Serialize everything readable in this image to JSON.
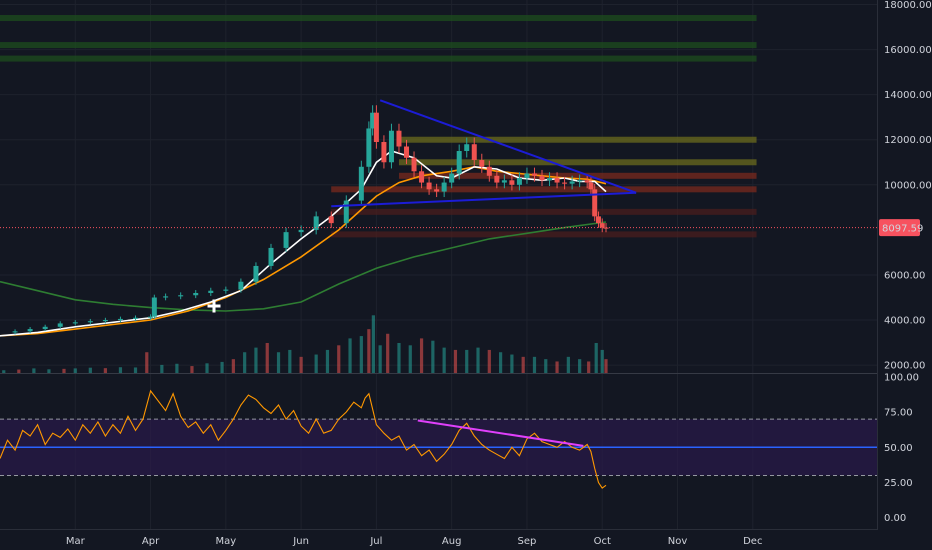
{
  "chart_data": [
    {
      "type": "candlestick",
      "price_axis": {
        "ticks": [
          "18000.00",
          "16000.00",
          "14000.00",
          "12000.00",
          "10000.00",
          "8097.59",
          "6000.00",
          "4000.00",
          "2000.00"
        ],
        "tick_values": [
          18000,
          16000,
          14000,
          12000,
          10000,
          6000,
          4000,
          2000
        ],
        "ylim": [
          1650,
          18200
        ]
      },
      "time_axis": {
        "labels": [
          "Mar",
          "Apr",
          "May",
          "Jun",
          "Jul",
          "Aug",
          "Sep",
          "Oct",
          "Nov",
          "Dec"
        ],
        "month_index": [
          1,
          2,
          3,
          4,
          5,
          6,
          7,
          8,
          9,
          10
        ],
        "xlim": [
          0.0,
          11.65
        ]
      },
      "last_price": {
        "label": "8097.59",
        "value": 8097.59,
        "color": "#f7525f"
      },
      "colors": {
        "up": "#26a69a",
        "down": "#ef5350",
        "ma_fast": "#ffffff",
        "ma_mid": "#ff9800",
        "ma_slow": "#2e7d32",
        "trendline": "#1c1cd6"
      },
      "close_series": [
        [
          0.0,
          3450
        ],
        [
          0.2,
          3500
        ],
        [
          0.4,
          3600
        ],
        [
          0.6,
          3700
        ],
        [
          0.8,
          3850
        ],
        [
          1.0,
          3900
        ],
        [
          1.2,
          3950
        ],
        [
          1.4,
          4000
        ],
        [
          1.6,
          4050
        ],
        [
          1.8,
          4100
        ],
        [
          2.0,
          4150
        ],
        [
          2.05,
          5000
        ],
        [
          2.2,
          5050
        ],
        [
          2.4,
          5100
        ],
        [
          2.6,
          5200
        ],
        [
          2.8,
          5300
        ],
        [
          3.0,
          5350
        ],
        [
          3.2,
          5700
        ],
        [
          3.4,
          6400
        ],
        [
          3.6,
          7200
        ],
        [
          3.8,
          7900
        ],
        [
          4.0,
          8000
        ],
        [
          4.2,
          8600
        ],
        [
          4.4,
          8300
        ],
        [
          4.6,
          9300
        ],
        [
          4.8,
          10800
        ],
        [
          4.9,
          12500
        ],
        [
          4.95,
          13200
        ],
        [
          5.0,
          11900
        ],
        [
          5.1,
          11000
        ],
        [
          5.2,
          12400
        ],
        [
          5.3,
          11700
        ],
        [
          5.4,
          11200
        ],
        [
          5.5,
          10600
        ],
        [
          5.6,
          10100
        ],
        [
          5.7,
          9800
        ],
        [
          5.8,
          9700
        ],
        [
          5.9,
          10100
        ],
        [
          6.0,
          10500
        ],
        [
          6.1,
          11500
        ],
        [
          6.2,
          11800
        ],
        [
          6.3,
          11100
        ],
        [
          6.4,
          10800
        ],
        [
          6.5,
          10400
        ],
        [
          6.6,
          10100
        ],
        [
          6.7,
          10200
        ],
        [
          6.8,
          10000
        ],
        [
          6.9,
          10300
        ],
        [
          7.0,
          10500
        ],
        [
          7.1,
          10400
        ],
        [
          7.2,
          10200
        ],
        [
          7.3,
          10300
        ],
        [
          7.4,
          10100
        ],
        [
          7.5,
          10050
        ],
        [
          7.6,
          10150
        ],
        [
          7.7,
          10200
        ],
        [
          7.8,
          10100
        ],
        [
          7.85,
          9800
        ],
        [
          7.9,
          8600
        ],
        [
          7.95,
          8300
        ],
        [
          8.0,
          8100
        ],
        [
          8.05,
          8097.59
        ]
      ],
      "volume_bars": [
        [
          0.05,
          120
        ],
        [
          0.25,
          150
        ],
        [
          0.45,
          200
        ],
        [
          0.65,
          160
        ],
        [
          0.85,
          180
        ],
        [
          1.0,
          200
        ],
        [
          1.2,
          230
        ],
        [
          1.4,
          210
        ],
        [
          1.6,
          250
        ],
        [
          1.8,
          240
        ],
        [
          1.95,
          900
        ],
        [
          2.15,
          350
        ],
        [
          2.35,
          400
        ],
        [
          2.55,
          300
        ],
        [
          2.75,
          420
        ],
        [
          2.95,
          480
        ],
        [
          3.1,
          600
        ],
        [
          3.25,
          900
        ],
        [
          3.4,
          1100
        ],
        [
          3.55,
          1300
        ],
        [
          3.7,
          900
        ],
        [
          3.85,
          1000
        ],
        [
          4.0,
          700
        ],
        [
          4.2,
          800
        ],
        [
          4.35,
          1000
        ],
        [
          4.5,
          1200
        ],
        [
          4.65,
          1500
        ],
        [
          4.8,
          1600
        ],
        [
          4.9,
          1900
        ],
        [
          4.96,
          2500
        ],
        [
          5.05,
          1200
        ],
        [
          5.15,
          1700
        ],
        [
          5.3,
          1300
        ],
        [
          5.45,
          1200
        ],
        [
          5.6,
          1500
        ],
        [
          5.75,
          1400
        ],
        [
          5.9,
          1100
        ],
        [
          6.05,
          1000
        ],
        [
          6.2,
          1000
        ],
        [
          6.35,
          1100
        ],
        [
          6.5,
          1000
        ],
        [
          6.65,
          900
        ],
        [
          6.8,
          800
        ],
        [
          6.95,
          700
        ],
        [
          7.1,
          700
        ],
        [
          7.25,
          600
        ],
        [
          7.4,
          500
        ],
        [
          7.55,
          700
        ],
        [
          7.7,
          600
        ],
        [
          7.82,
          500
        ],
        [
          7.92,
          1300
        ],
        [
          8.0,
          1000
        ],
        [
          8.05,
          600
        ]
      ],
      "ma_fast": [
        [
          0.0,
          3300
        ],
        [
          0.5,
          3450
        ],
        [
          1.0,
          3700
        ],
        [
          1.5,
          3900
        ],
        [
          2.0,
          4100
        ],
        [
          2.4,
          4400
        ],
        [
          2.8,
          4800
        ],
        [
          3.2,
          5300
        ],
        [
          3.6,
          6500
        ],
        [
          4.0,
          7600
        ],
        [
          4.4,
          8600
        ],
        [
          4.8,
          9800
        ],
        [
          5.0,
          11000
        ],
        [
          5.2,
          11500
        ],
        [
          5.5,
          11200
        ],
        [
          5.8,
          10400
        ],
        [
          6.0,
          10300
        ],
        [
          6.3,
          10800
        ],
        [
          6.6,
          10700
        ],
        [
          6.9,
          10300
        ],
        [
          7.2,
          10200
        ],
        [
          7.5,
          10300
        ],
        [
          7.7,
          10150
        ],
        [
          7.9,
          10150
        ],
        [
          8.05,
          9700
        ]
      ],
      "ma_mid": [
        [
          0.0,
          3300
        ],
        [
          0.5,
          3400
        ],
        [
          1.0,
          3600
        ],
        [
          1.5,
          3800
        ],
        [
          2.0,
          4000
        ],
        [
          2.5,
          4400
        ],
        [
          3.0,
          5000
        ],
        [
          3.5,
          5800
        ],
        [
          4.0,
          6800
        ],
        [
          4.5,
          8000
        ],
        [
          4.8,
          8900
        ],
        [
          5.0,
          9500
        ],
        [
          5.3,
          10100
        ],
        [
          5.6,
          10400
        ],
        [
          6.0,
          10600
        ],
        [
          6.3,
          10800
        ],
        [
          6.6,
          10600
        ],
        [
          6.9,
          10500
        ],
        [
          7.2,
          10400
        ],
        [
          7.5,
          10300
        ],
        [
          7.8,
          10250
        ],
        [
          8.05,
          10050
        ]
      ],
      "ma_slow": [
        [
          0.0,
          5700
        ],
        [
          0.5,
          5300
        ],
        [
          1.0,
          4900
        ],
        [
          1.5,
          4700
        ],
        [
          2.0,
          4550
        ],
        [
          2.5,
          4450
        ],
        [
          3.0,
          4400
        ],
        [
          3.5,
          4500
        ],
        [
          4.0,
          4800
        ],
        [
          4.5,
          5600
        ],
        [
          5.0,
          6300
        ],
        [
          5.5,
          6800
        ],
        [
          6.0,
          7200
        ],
        [
          6.5,
          7600
        ],
        [
          7.0,
          7850
        ],
        [
          7.5,
          8100
        ],
        [
          8.05,
          8350
        ]
      ],
      "trendlines": [
        {
          "from": [
            5.05,
            13750
          ],
          "to": [
            8.45,
            9650
          ]
        },
        {
          "from": [
            4.4,
            9050
          ],
          "to": [
            8.45,
            9650
          ]
        }
      ],
      "sr_levels": [
        {
          "value": 17400,
          "color": "#1e4d1e"
        },
        {
          "value": 16200,
          "color": "#1e4d1e"
        },
        {
          "value": 15600,
          "color": "#1e4d1e"
        },
        {
          "value": 12000,
          "color": "#6b6b1e",
          "from": 5.3
        },
        {
          "value": 11000,
          "color": "#6b6b1e",
          "from": 5.3
        },
        {
          "value": 10400,
          "color": "#7a2a1e",
          "from": 5.3
        },
        {
          "value": 9800,
          "color": "#7a2a1e",
          "from": 4.4
        },
        {
          "value": 8800,
          "color": "#4a1e1e",
          "from": 4.4
        },
        {
          "value": 7800,
          "color": "#4a1e1e",
          "from": 4.4
        }
      ]
    },
    {
      "type": "line",
      "indicator": "oscillator",
      "axis": {
        "ticks": [
          "100.00",
          "75.00",
          "50.00",
          "25.00",
          "0.00"
        ],
        "tick_values": [
          100,
          75,
          50,
          25,
          0
        ],
        "ylim": [
          -8,
          102
        ]
      },
      "levels": [
        70,
        50,
        30
      ],
      "band": [
        30,
        70
      ],
      "colors": {
        "line": "#ff9800",
        "midline": "#2962ff",
        "band": "#2a1a4a",
        "divergence": "#e040fb"
      },
      "series": [
        [
          0.0,
          42
        ],
        [
          0.1,
          55
        ],
        [
          0.2,
          48
        ],
        [
          0.3,
          62
        ],
        [
          0.4,
          58
        ],
        [
          0.5,
          66
        ],
        [
          0.6,
          52
        ],
        [
          0.7,
          60
        ],
        [
          0.8,
          57
        ],
        [
          0.9,
          63
        ],
        [
          1.0,
          55
        ],
        [
          1.1,
          66
        ],
        [
          1.2,
          60
        ],
        [
          1.3,
          68
        ],
        [
          1.4,
          58
        ],
        [
          1.5,
          66
        ],
        [
          1.6,
          60
        ],
        [
          1.7,
          72
        ],
        [
          1.8,
          62
        ],
        [
          1.9,
          70
        ],
        [
          2.0,
          90
        ],
        [
          2.1,
          83
        ],
        [
          2.2,
          76
        ],
        [
          2.3,
          88
        ],
        [
          2.4,
          72
        ],
        [
          2.5,
          64
        ],
        [
          2.6,
          68
        ],
        [
          2.7,
          60
        ],
        [
          2.8,
          66
        ],
        [
          2.9,
          55
        ],
        [
          3.0,
          62
        ],
        [
          3.1,
          70
        ],
        [
          3.2,
          80
        ],
        [
          3.3,
          87
        ],
        [
          3.4,
          84
        ],
        [
          3.5,
          78
        ],
        [
          3.6,
          74
        ],
        [
          3.7,
          80
        ],
        [
          3.8,
          70
        ],
        [
          3.9,
          76
        ],
        [
          4.0,
          65
        ],
        [
          4.1,
          60
        ],
        [
          4.2,
          70
        ],
        [
          4.3,
          60
        ],
        [
          4.4,
          62
        ],
        [
          4.5,
          70
        ],
        [
          4.6,
          75
        ],
        [
          4.7,
          82
        ],
        [
          4.8,
          78
        ],
        [
          4.85,
          85
        ],
        [
          4.9,
          88
        ],
        [
          5.0,
          66
        ],
        [
          5.1,
          60
        ],
        [
          5.2,
          55
        ],
        [
          5.3,
          58
        ],
        [
          5.4,
          48
        ],
        [
          5.5,
          52
        ],
        [
          5.6,
          44
        ],
        [
          5.7,
          48
        ],
        [
          5.8,
          40
        ],
        [
          5.9,
          45
        ],
        [
          6.0,
          52
        ],
        [
          6.1,
          62
        ],
        [
          6.2,
          67
        ],
        [
          6.3,
          58
        ],
        [
          6.4,
          52
        ],
        [
          6.5,
          48
        ],
        [
          6.6,
          45
        ],
        [
          6.7,
          42
        ],
        [
          6.8,
          50
        ],
        [
          6.9,
          44
        ],
        [
          7.0,
          56
        ],
        [
          7.1,
          60
        ],
        [
          7.2,
          54
        ],
        [
          7.3,
          52
        ],
        [
          7.4,
          50
        ],
        [
          7.5,
          54
        ],
        [
          7.6,
          50
        ],
        [
          7.7,
          48
        ],
        [
          7.8,
          52
        ],
        [
          7.85,
          47
        ],
        [
          7.9,
          35
        ],
        [
          7.95,
          25
        ],
        [
          8.0,
          21
        ],
        [
          8.05,
          23
        ]
      ],
      "divergence_line": {
        "from": [
          5.55,
          69
        ],
        "to": [
          7.75,
          51
        ]
      }
    }
  ]
}
